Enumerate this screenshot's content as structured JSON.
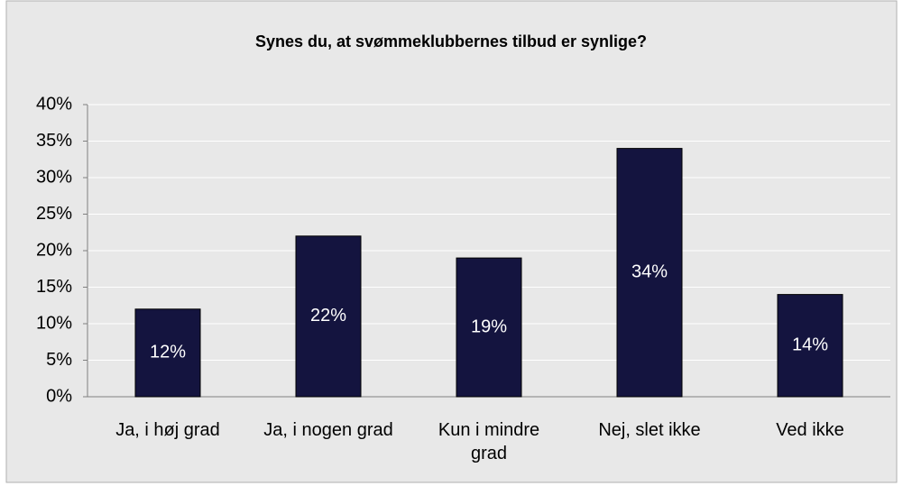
{
  "chart_data": {
    "type": "bar",
    "title": "Synes du, at svømmeklubbernes tilbud er synlige?",
    "categories": [
      "Ja, i høj grad",
      "Ja, i nogen grad",
      "Kun i mindre grad",
      "Nej, slet ikke",
      "Ved ikke"
    ],
    "values": [
      12,
      22,
      19,
      34,
      14
    ],
    "value_labels": [
      "12%",
      "22%",
      "19%",
      "34%",
      "14%"
    ],
    "color": "#14143f",
    "ylim": [
      0,
      40
    ],
    "yticks": [
      {
        "value": 0,
        "label": "0%"
      },
      {
        "value": 5,
        "label": "5%"
      },
      {
        "value": 10,
        "label": "10%"
      },
      {
        "value": 15,
        "label": "15%"
      },
      {
        "value": 20,
        "label": "20%"
      },
      {
        "value": 25,
        "label": "25%"
      },
      {
        "value": 30,
        "label": "30%"
      },
      {
        "value": 35,
        "label": "35%"
      },
      {
        "value": 40,
        "label": "40%"
      }
    ],
    "grid": true
  }
}
